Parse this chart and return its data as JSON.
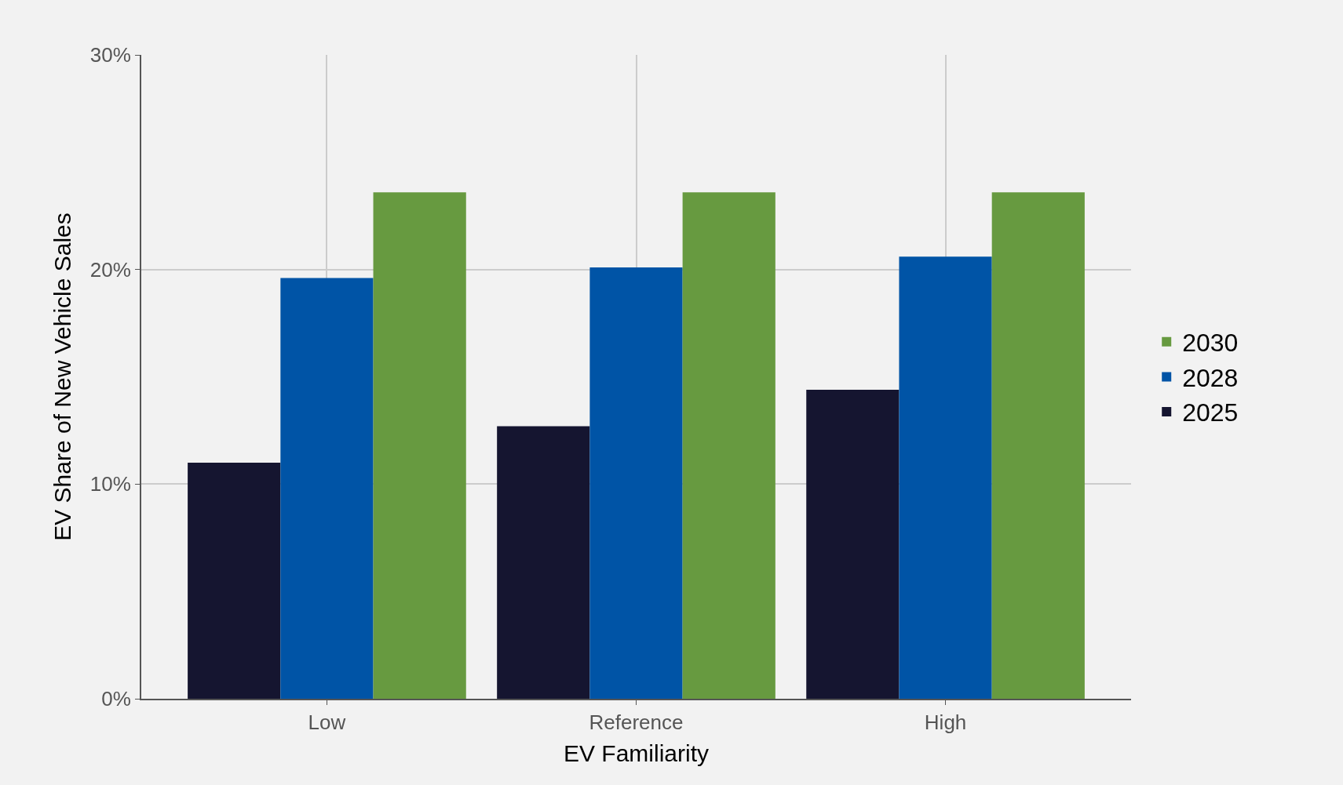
{
  "chart_data": {
    "type": "bar",
    "xlabel": "EV Familiarity",
    "ylabel": "EV Share of New Vehicle Sales",
    "categories": [
      "Low",
      "Reference",
      "High"
    ],
    "series": [
      {
        "name": "2025",
        "color": "#151530",
        "values": [
          11.0,
          12.7,
          14.4
        ]
      },
      {
        "name": "2028",
        "color": "#0054a6",
        "values": [
          19.6,
          20.1,
          20.6
        ]
      },
      {
        "name": "2030",
        "color": "#679a40",
        "values": [
          23.6,
          23.6,
          23.6
        ]
      }
    ],
    "ylim": [
      0,
      30
    ],
    "yticks": [
      {
        "value": 0,
        "label": "0%"
      },
      {
        "value": 10,
        "label": "10%"
      },
      {
        "value": 20,
        "label": "20%"
      },
      {
        "value": 30,
        "label": "30%"
      }
    ],
    "grid": true,
    "legend": "right"
  }
}
